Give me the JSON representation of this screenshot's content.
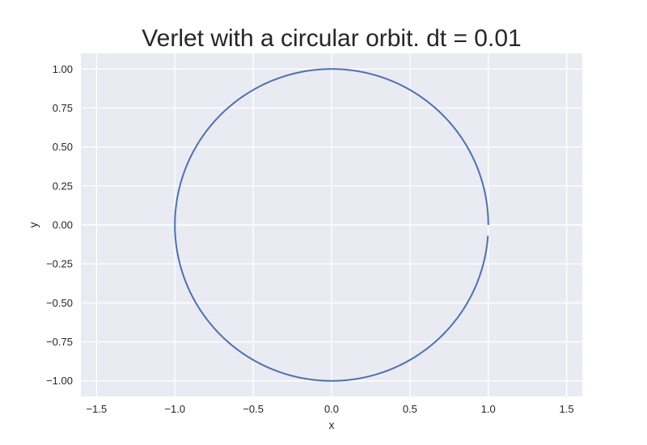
{
  "chart_data": {
    "type": "line",
    "title": "Verlet with a circular orbit. dt = 0.01",
    "xlabel": "x",
    "ylabel": "y",
    "xlim": [
      -1.6,
      1.6
    ],
    "ylim": [
      -1.1,
      1.1
    ],
    "xticks": [
      -1.5,
      -1.0,
      -0.5,
      0.0,
      0.5,
      1.0,
      1.5
    ],
    "xtick_labels": [
      "−1.5",
      "−1.0",
      "−0.5",
      "0.0",
      "0.5",
      "1.0",
      "1.5"
    ],
    "yticks": [
      1.0,
      0.75,
      0.5,
      0.25,
      0.0,
      -0.25,
      -0.5,
      -0.75,
      -1.0
    ],
    "ytick_labels": [
      "1.00",
      "0.75",
      "0.50",
      "0.25",
      "0.00",
      "−0.25",
      "−0.50",
      "−0.75",
      "−1.00"
    ],
    "grid": true,
    "series": [
      {
        "color": "#4c72b0",
        "shape": "circle",
        "center": [
          0,
          0
        ],
        "radius": 1.0,
        "theta_start_deg": 0,
        "theta_end_deg": 356
      }
    ]
  },
  "colors": {
    "plot_background": "#eaeaf2",
    "grid": "#ffffff",
    "text": "#262626",
    "line": "#4c72b0"
  }
}
